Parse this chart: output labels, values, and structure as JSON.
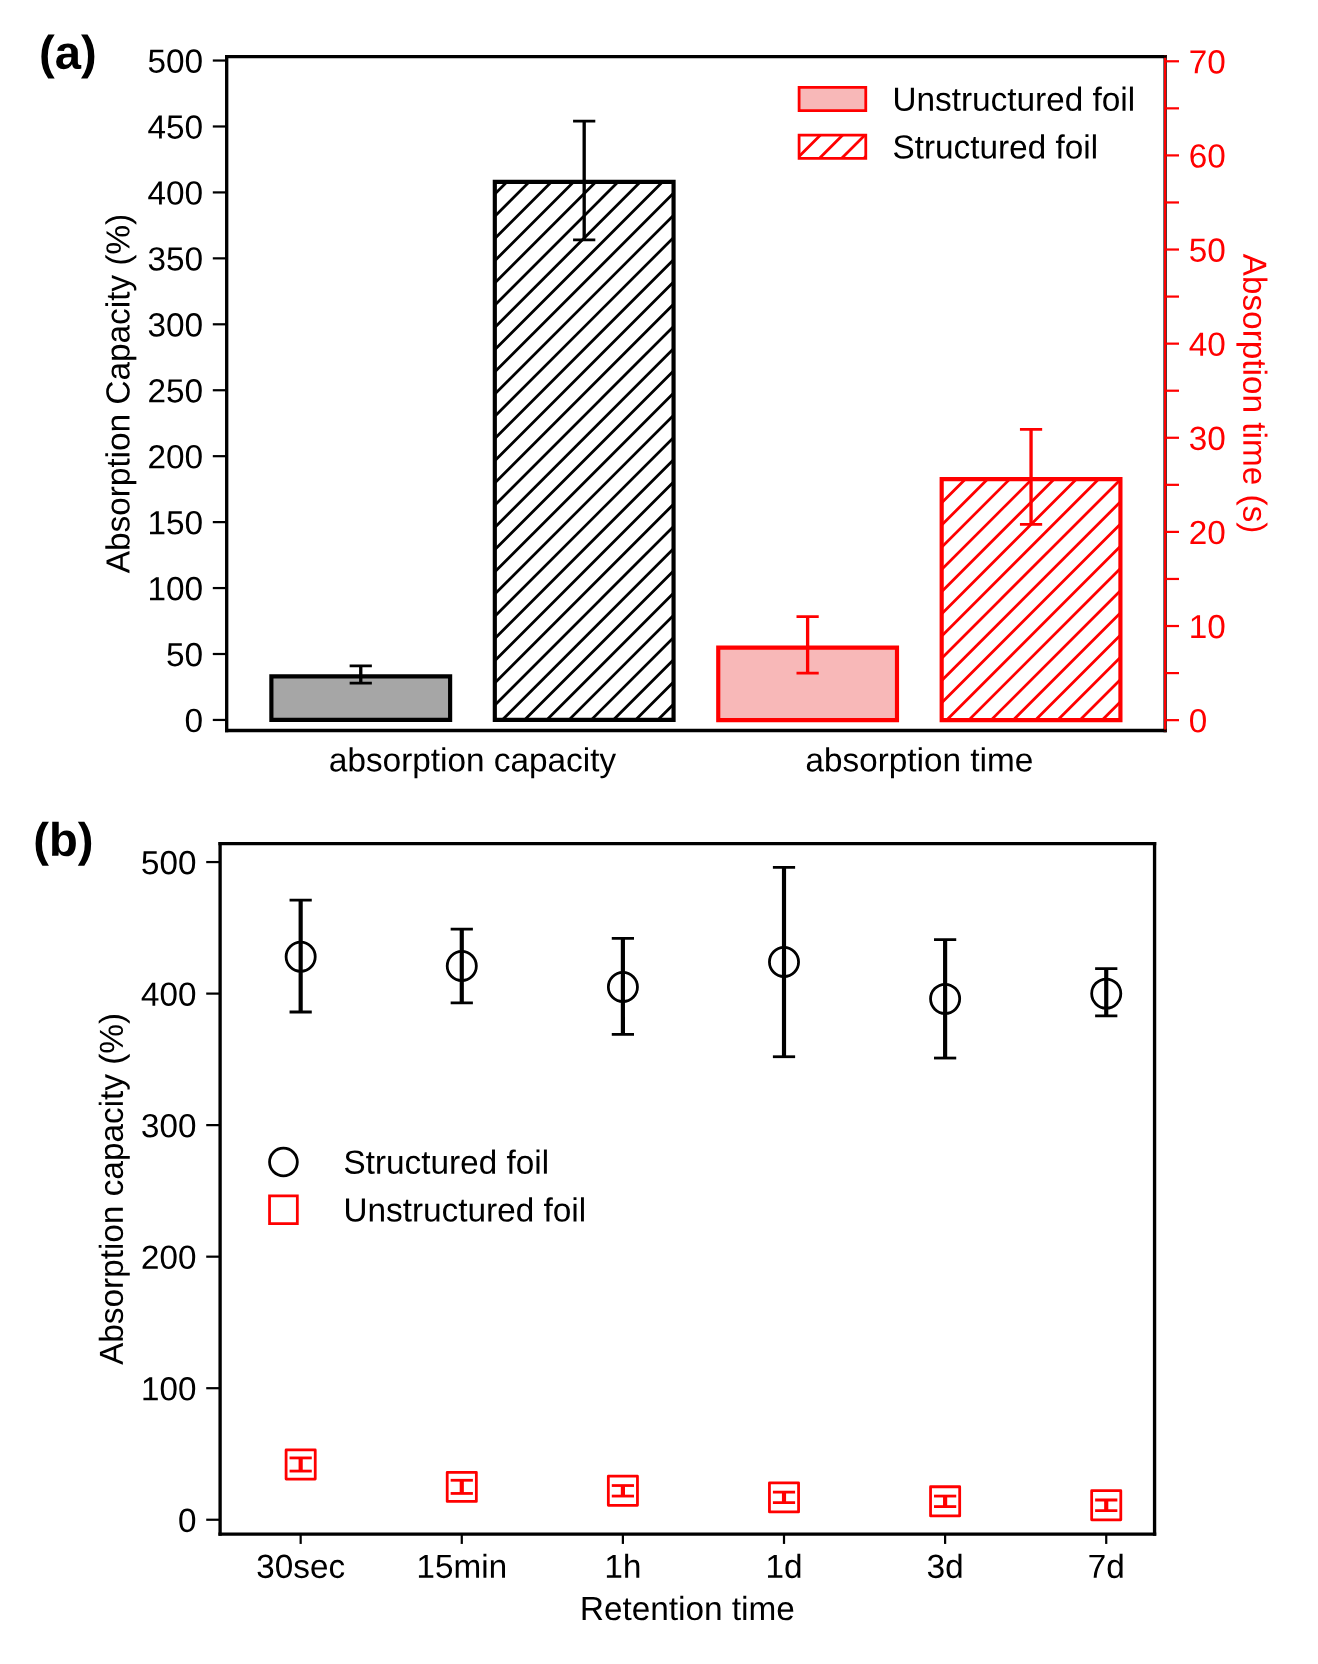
{
  "chart_data": [
    {
      "type": "bar",
      "title": "(a)",
      "ylabel": "Absorption Capacity (%)",
      "y2label": "Absorption time (s)",
      "categories": [
        "absorption capacity",
        "absorption time"
      ],
      "series": [
        {
          "color": "#a6a6a6",
          "values": [
            33,
            null
          ],
          "errors": [
            [
              28,
              41
            ],
            null
          ]
        },
        {
          "color": "#000000",
          "values": [
            408,
            null
          ],
          "errors": [
            [
              364,
              454
            ],
            null
          ]
        },
        {
          "name": "Unstructured foil",
          "color": "#f8b8b8",
          "axis": "y2",
          "values": [
            null,
            7.7
          ],
          "errors": [
            null,
            [
              5.0,
              11.0
            ]
          ]
        },
        {
          "name": "Structured foil",
          "color": "#ff0000",
          "axis": "y2",
          "values": [
            null,
            25.6
          ],
          "errors": [
            null,
            [
              20.8,
              30.9
            ]
          ]
        }
      ],
      "ylim": [
        -8,
        503
      ],
      "yticks": [
        0,
        50,
        100,
        150,
        200,
        250,
        300,
        350,
        400,
        450,
        500
      ],
      "y2lim": [
        -1.1,
        70.5
      ],
      "y2ticks": [
        0,
        {
          "value": 5,
          "label": null
        },
        10,
        {
          "value": 15,
          "label": null
        },
        20,
        {
          "value": 25,
          "label": null
        },
        30,
        {
          "value": 35,
          "label": null
        },
        40,
        {
          "value": 45,
          "label": null
        },
        50,
        {
          "value": 55,
          "label": null
        },
        60,
        {
          "value": 65,
          "label": null
        },
        70
      ],
      "legend": "top right",
      "grid": false
    },
    {
      "type": "scatter",
      "title": "(b)",
      "xlabel": "Retention time",
      "ylabel": "Absorption capacity (%)",
      "categories": [
        "30sec",
        "15min",
        "1h",
        "1d",
        "3d",
        "7d"
      ],
      "series": [
        {
          "name": "Structured foil",
          "color": "#000000",
          "marker": "circle",
          "values": [
            428,
            421,
            405,
            424,
            396,
            400
          ],
          "errors": [
            [
              386,
              471
            ],
            [
              393,
              449
            ],
            [
              369,
              442
            ],
            [
              352,
              496
            ],
            [
              351,
              441
            ],
            [
              383,
              419
            ]
          ]
        },
        {
          "name": "Unstructured foil",
          "color": "#ff0000",
          "marker": "square",
          "values": [
            42,
            25,
            22,
            17,
            14,
            11
          ],
          "errors": [
            [
              37,
              47
            ],
            [
              20,
              30
            ],
            [
              18,
              26
            ],
            [
              13,
              21
            ],
            [
              10,
              18
            ],
            [
              7,
              15
            ]
          ]
        }
      ],
      "ylim": [
        -11,
        514
      ],
      "yticks": [
        0,
        100,
        200,
        300,
        400,
        500
      ],
      "legend": "left",
      "grid": false
    }
  ]
}
